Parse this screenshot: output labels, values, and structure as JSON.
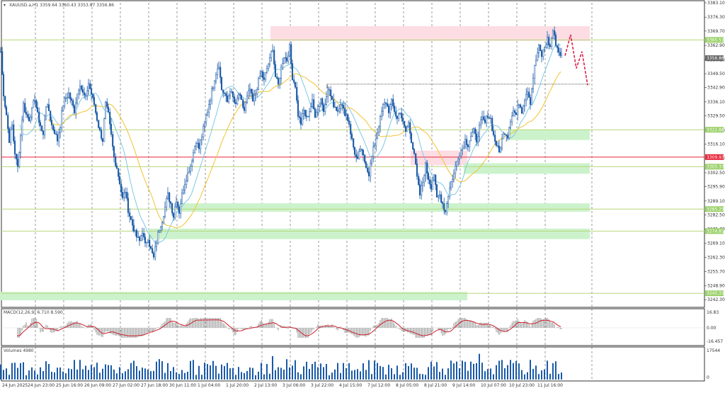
{
  "window": {
    "symbol_header": "XAUUSD.a,H1  3359.64 3360.43 3353.87 3356.86",
    "caret": "▾"
  },
  "price_axis": {
    "ticks": [
      "3383.10",
      "3376.30",
      "3369.70",
      "3362.90",
      "3356.10",
      "3349.50",
      "3342.90",
      "3336.10",
      "3329.50",
      "3322.70",
      "3316.10",
      "3309.30",
      "3302.50",
      "3295.90",
      "3289.10",
      "3282.50",
      "3275.70",
      "3269.10",
      "3262.30",
      "3255.70",
      "3248.90",
      "3242.30"
    ]
  },
  "level_labels": [
    {
      "text": "3365.51",
      "color": "#9bd16a",
      "price": 3365.51
    },
    {
      "text": "3356.86",
      "color": "#666666",
      "price": 3356.86
    },
    {
      "text": "3322.88",
      "color": "#9bd16a",
      "price": 3322.88
    },
    {
      "text": "3309.93",
      "color": "#e8253a",
      "price": 3309.93
    },
    {
      "text": "3305.37",
      "color": "#9bd16a",
      "price": 3305.37
    },
    {
      "text": "3285.25",
      "color": "#9bd16a",
      "price": 3285.25
    },
    {
      "text": "3274.81",
      "color": "#9bd16a",
      "price": 3274.81
    },
    {
      "text": "3245.31",
      "color": "#9bd16a",
      "price": 3245.31
    }
  ],
  "time_axis": {
    "labels": [
      "24 Jun 2025",
      "24 Jun 23:00",
      "25 Jun 16:00",
      "26 Jun 09:00",
      "27 Jun 02:00",
      "27 Jun 18:00",
      "30 Jun 11:00",
      "1 Jul 04:00",
      "1 Jul 20:00",
      "2 Jul 13:00",
      "3 Jul 06:00",
      "3 Jul 22:00",
      "4 Jul 15:00",
      "7 Jul 12:00",
      "8 Jul 05:00",
      "8 Jul 21:00",
      "9 Jul 14:00",
      "10 Jul 07:00",
      "10 Jul 23:00",
      "11 Jul 16:00"
    ]
  },
  "macd": {
    "title": "MACD(12,26,9) 6.710 8.590",
    "ticks": [
      "16.83",
      "0.00",
      "-16.457"
    ]
  },
  "volumes": {
    "title": "Volumes 4980",
    "ticks": [
      "17544",
      "0"
    ]
  },
  "chart_data": {
    "type": "candlestick",
    "series": [
      {
        "name": "XAUUSD.a,H1",
        "close_path": [
          [
            0,
            3360
          ],
          [
            4,
            3340
          ],
          [
            8,
            3330
          ],
          [
            12,
            3318
          ],
          [
            16,
            3325
          ],
          [
            20,
            3312
          ],
          [
            24,
            3305
          ],
          [
            28,
            3320
          ],
          [
            32,
            3335
          ],
          [
            36,
            3330
          ],
          [
            40,
            3328
          ],
          [
            44,
            3332
          ],
          [
            48,
            3338
          ],
          [
            52,
            3330
          ],
          [
            56,
            3325
          ],
          [
            60,
            3320
          ],
          [
            64,
            3335
          ],
          [
            68,
            3332
          ],
          [
            72,
            3325
          ],
          [
            76,
            3322
          ],
          [
            80,
            3318
          ],
          [
            84,
            3325
          ],
          [
            88,
            3335
          ],
          [
            92,
            3338
          ],
          [
            96,
            3340
          ],
          [
            100,
            3336
          ],
          [
            104,
            3332
          ],
          [
            108,
            3340
          ],
          [
            112,
            3345
          ],
          [
            116,
            3340
          ],
          [
            120,
            3338
          ],
          [
            124,
            3345
          ],
          [
            128,
            3340
          ],
          [
            132,
            3335
          ],
          [
            136,
            3328
          ],
          [
            140,
            3322
          ],
          [
            144,
            3318
          ],
          [
            148,
            3335
          ],
          [
            152,
            3330
          ],
          [
            156,
            3320
          ],
          [
            160,
            3310
          ],
          [
            164,
            3305
          ],
          [
            168,
            3298
          ],
          [
            172,
            3290
          ],
          [
            176,
            3294
          ],
          [
            180,
            3285
          ],
          [
            184,
            3280
          ],
          [
            188,
            3276
          ],
          [
            192,
            3272
          ],
          [
            196,
            3270
          ],
          [
            200,
            3275
          ],
          [
            204,
            3268
          ],
          [
            208,
            3272
          ],
          [
            212,
            3266
          ],
          [
            216,
            3262
          ],
          [
            220,
            3270
          ],
          [
            224,
            3276
          ],
          [
            228,
            3280
          ],
          [
            232,
            3286
          ],
          [
            236,
            3292
          ],
          [
            240,
            3288
          ],
          [
            244,
            3282
          ],
          [
            248,
            3290
          ],
          [
            252,
            3284
          ],
          [
            256,
            3292
          ],
          [
            260,
            3298
          ],
          [
            264,
            3302
          ],
          [
            268,
            3306
          ],
          [
            272,
            3312
          ],
          [
            276,
            3318
          ],
          [
            280,
            3314
          ],
          [
            284,
            3320
          ],
          [
            288,
            3326
          ],
          [
            292,
            3332
          ],
          [
            296,
            3338
          ],
          [
            300,
            3344
          ],
          [
            304,
            3350
          ],
          [
            308,
            3354
          ],
          [
            312,
            3342
          ],
          [
            316,
            3340
          ],
          [
            320,
            3336
          ],
          [
            324,
            3342
          ],
          [
            328,
            3338
          ],
          [
            332,
            3334
          ],
          [
            336,
            3340
          ],
          [
            340,
            3336
          ],
          [
            344,
            3332
          ],
          [
            348,
            3338
          ],
          [
            352,
            3342
          ],
          [
            356,
            3336
          ],
          [
            360,
            3340
          ],
          [
            364,
            3346
          ],
          [
            368,
            3350
          ],
          [
            372,
            3346
          ],
          [
            376,
            3352
          ],
          [
            380,
            3356
          ],
          [
            384,
            3362
          ],
          [
            388,
            3348
          ],
          [
            392,
            3344
          ],
          [
            396,
            3352
          ],
          [
            400,
            3358
          ],
          [
            404,
            3356
          ],
          [
            408,
            3362
          ],
          [
            412,
            3348
          ],
          [
            416,
            3344
          ],
          [
            420,
            3330
          ],
          [
            424,
            3326
          ],
          [
            428,
            3332
          ],
          [
            432,
            3328
          ],
          [
            436,
            3332
          ],
          [
            440,
            3336
          ],
          [
            444,
            3330
          ],
          [
            448,
            3334
          ],
          [
            452,
            3338
          ],
          [
            456,
            3332
          ],
          [
            460,
            3340
          ],
          [
            464,
            3342
          ],
          [
            468,
            3336
          ],
          [
            472,
            3334
          ],
          [
            476,
            3332
          ],
          [
            480,
            3336
          ],
          [
            484,
            3332
          ],
          [
            488,
            3330
          ],
          [
            492,
            3326
          ],
          [
            496,
            3318
          ],
          [
            500,
            3312
          ],
          [
            504,
            3308
          ],
          [
            508,
            3314
          ],
          [
            512,
            3310
          ],
          [
            516,
            3306
          ],
          [
            520,
            3302
          ],
          [
            524,
            3310
          ],
          [
            528,
            3316
          ],
          [
            532,
            3322
          ],
          [
            536,
            3328
          ],
          [
            540,
            3334
          ],
          [
            544,
            3336
          ],
          [
            548,
            3332
          ],
          [
            552,
            3336
          ],
          [
            556,
            3332
          ],
          [
            560,
            3328
          ],
          [
            564,
            3332
          ],
          [
            568,
            3326
          ],
          [
            572,
            3322
          ],
          [
            576,
            3326
          ],
          [
            580,
            3318
          ],
          [
            584,
            3312
          ],
          [
            588,
            3300
          ],
          [
            592,
            3292
          ],
          [
            596,
            3298
          ],
          [
            600,
            3306
          ],
          [
            604,
            3300
          ],
          [
            608,
            3296
          ],
          [
            612,
            3302
          ],
          [
            616,
            3290
          ],
          [
            620,
            3292
          ],
          [
            624,
            3288
          ],
          [
            628,
            3284
          ],
          [
            632,
            3292
          ],
          [
            636,
            3298
          ],
          [
            640,
            3302
          ],
          [
            644,
            3308
          ],
          [
            648,
            3312
          ],
          [
            652,
            3314
          ],
          [
            656,
            3318
          ],
          [
            660,
            3316
          ],
          [
            664,
            3320
          ],
          [
            668,
            3322
          ],
          [
            672,
            3318
          ],
          [
            676,
            3324
          ],
          [
            680,
            3328
          ],
          [
            684,
            3326
          ],
          [
            688,
            3330
          ],
          [
            692,
            3328
          ],
          [
            696,
            3320
          ],
          [
            700,
            3316
          ],
          [
            704,
            3312
          ],
          [
            708,
            3318
          ],
          [
            712,
            3322
          ],
          [
            716,
            3320
          ],
          [
            720,
            3328
          ],
          [
            724,
            3332
          ],
          [
            728,
            3330
          ],
          [
            732,
            3336
          ],
          [
            736,
            3332
          ],
          [
            740,
            3338
          ],
          [
            744,
            3342
          ],
          [
            748,
            3336
          ],
          [
            752,
            3348
          ],
          [
            756,
            3356
          ],
          [
            760,
            3362
          ],
          [
            764,
            3358
          ],
          [
            768,
            3362
          ],
          [
            772,
            3366
          ],
          [
            776,
            3362
          ],
          [
            780,
            3370
          ],
          [
            784,
            3364
          ],
          [
            788,
            3360
          ],
          [
            792,
            3358
          ],
          [
            794,
            3357
          ]
        ]
      },
      {
        "name": "MA fast",
        "color": "#7ec8e3"
      },
      {
        "name": "MA slow",
        "color": "#f2c230"
      }
    ],
    "projection": [
      [
        798,
        3358
      ],
      [
        806,
        3368
      ],
      [
        814,
        3352
      ],
      [
        822,
        3360
      ],
      [
        830,
        3344
      ]
    ],
    "resistance_line": {
      "price": 3344.5,
      "from_x": 462,
      "to_x": 833
    },
    "zones": [
      {
        "kind": "supply",
        "top": 3372,
        "bottom": 3365,
        "from_x": 382,
        "to_x": 833
      },
      {
        "kind": "supply",
        "top": 3313,
        "bottom": 3306,
        "from_x": 580,
        "to_x": 660
      },
      {
        "kind": "demand",
        "top": 3323,
        "bottom": 3318,
        "from_x": 718,
        "to_x": 833
      },
      {
        "kind": "demand",
        "top": 3307,
        "bottom": 3302,
        "from_x": 655,
        "to_x": 833
      },
      {
        "kind": "demand",
        "top": 3288,
        "bottom": 3284,
        "from_x": 255,
        "to_x": 833
      },
      {
        "kind": "demand",
        "top": 3276,
        "bottom": 3271,
        "from_x": 210,
        "to_x": 833
      },
      {
        "kind": "demand",
        "top": 3246,
        "bottom": 3242,
        "from_x": 0,
        "to_x": 660
      }
    ],
    "ylim": [
      3240,
      3383.1
    ],
    "grid": true
  },
  "colors": {
    "bull": "#1a5aa8",
    "bear": "#1a5aa8",
    "demand": "#ccf2cc",
    "supply": "#fcdde3",
    "level": "#b8d77a",
    "red_level": "#e8253a",
    "projection": "#e0204a",
    "macd_signal": "#cc1f2a",
    "hist": "#a6a6a6",
    "volume": "#1a5aa8"
  }
}
